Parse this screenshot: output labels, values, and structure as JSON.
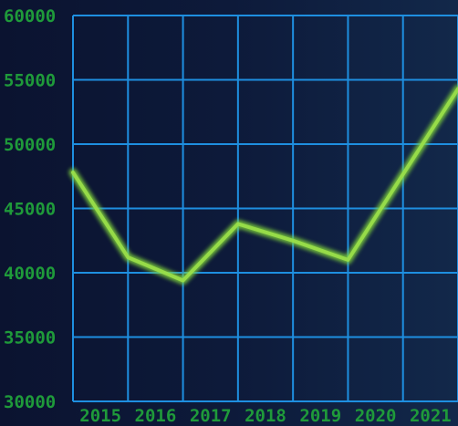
{
  "chart_data": {
    "type": "line",
    "title": "",
    "xlabel": "",
    "ylabel": "",
    "categories": [
      "2015",
      "2016",
      "2017",
      "2018",
      "2019",
      "2020",
      "2021"
    ],
    "series": [
      {
        "values": [
          47800,
          41200,
          39400,
          43800,
          42500,
          41000,
          54300
        ]
      }
    ],
    "ylim": [
      30000,
      60000
    ],
    "yticks": [
      "30000",
      "35000",
      "40000",
      "45000",
      "50000",
      "55000",
      "60000"
    ],
    "grid": true,
    "colors": {
      "line": "#7fd23a",
      "grid": "#1e8fe0",
      "tick_text": "#1f9a3a"
    }
  }
}
